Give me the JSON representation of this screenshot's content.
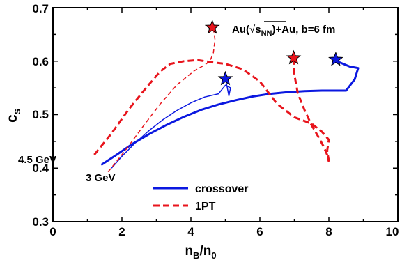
{
  "chart_data": {
    "type": "line",
    "title_parts": {
      "pre": "Au(",
      "root_base": "s",
      "root_sub": "NN",
      "post": ")+Au, b=6 fm"
    },
    "xlabel": {
      "base": "n",
      "sub1": "B",
      "slash": "/n",
      "sub2": "0"
    },
    "ylabel": {
      "base": "c",
      "sub": "s"
    },
    "xlim": [
      0,
      10
    ],
    "ylim": [
      0.3,
      0.7
    ],
    "xticks": [
      "0",
      "2",
      "4",
      "6",
      "8",
      "10"
    ],
    "yticks": [
      "0.3",
      "0.4",
      "0.5",
      "0.6",
      "0.7"
    ],
    "annotations": [
      "4.5 GeV",
      "3 GeV"
    ],
    "legend_position": "bottom-center",
    "series": [
      {
        "name": "crossover",
        "color": "#0b18e0",
        "style": "solid",
        "width": 3,
        "x": [
          1.4,
          1.8,
          2.3,
          2.8,
          3.3,
          3.8,
          4.3,
          4.8,
          5.3,
          5.8,
          6.3,
          6.8,
          7.3,
          7.8,
          8.2,
          8.5,
          8.75,
          8.85,
          8.6,
          8.3,
          8.2
        ],
        "y": [
          0.406,
          0.423,
          0.445,
          0.464,
          0.481,
          0.496,
          0.509,
          0.519,
          0.527,
          0.534,
          0.539,
          0.542,
          0.544,
          0.545,
          0.545,
          0.545,
          0.566,
          0.587,
          0.59,
          0.598,
          0.603
        ]
      },
      {
        "name": "",
        "color": "#0b18e0",
        "style": "solid",
        "width": 1.5,
        "x": [
          1.7,
          2.0,
          2.4,
          2.8,
          3.2,
          3.6,
          4.0,
          4.4,
          4.8,
          5.0,
          5.15,
          5.1,
          5.05,
          5.0
        ],
        "y": [
          0.4,
          0.422,
          0.448,
          0.471,
          0.491,
          0.508,
          0.522,
          0.533,
          0.539,
          0.555,
          0.55,
          0.535,
          0.552,
          0.567
        ]
      },
      {
        "name": "1PT",
        "color": "#e8141c",
        "style": "dashed",
        "width": 3,
        "x": [
          1.2,
          1.7,
          2.2,
          2.7,
          3.1,
          3.4,
          3.8,
          4.2,
          4.6,
          5.0,
          5.5,
          6.0,
          6.5,
          7.0,
          7.5,
          7.8,
          8.0,
          7.95,
          8.0
        ],
        "y": [
          0.425,
          0.465,
          0.51,
          0.55,
          0.58,
          0.595,
          0.6,
          0.602,
          0.598,
          0.595,
          0.585,
          0.562,
          0.52,
          0.495,
          0.483,
          0.468,
          0.453,
          0.432,
          0.414
        ]
      },
      {
        "name": "",
        "color": "#e8141c",
        "style": "dashed",
        "width": 1.5,
        "x": [
          1.6,
          2.1,
          2.6,
          3.1,
          3.6,
          4.1,
          4.4,
          4.55,
          4.65,
          4.7,
          4.65
        ],
        "y": [
          0.393,
          0.433,
          0.477,
          0.519,
          0.556,
          0.582,
          0.593,
          0.6,
          0.615,
          0.64,
          0.662
        ]
      },
      {
        "name": "",
        "color": "#e8141c",
        "style": "dashed",
        "width": 3,
        "x": [
          7.0,
          7.0,
          7.1,
          7.3,
          7.5,
          7.7,
          7.85,
          7.95,
          8.0
        ],
        "y": [
          0.605,
          0.575,
          0.54,
          0.508,
          0.48,
          0.458,
          0.44,
          0.425,
          0.412
        ]
      }
    ],
    "stars": [
      {
        "x": 4.62,
        "y": 0.663,
        "fill": "#e8141c"
      },
      {
        "x": 6.98,
        "y": 0.606,
        "fill": "#e8141c"
      },
      {
        "x": 5.0,
        "y": 0.567,
        "fill": "#0b18e0"
      },
      {
        "x": 8.2,
        "y": 0.603,
        "fill": "#0b18e0"
      }
    ]
  }
}
